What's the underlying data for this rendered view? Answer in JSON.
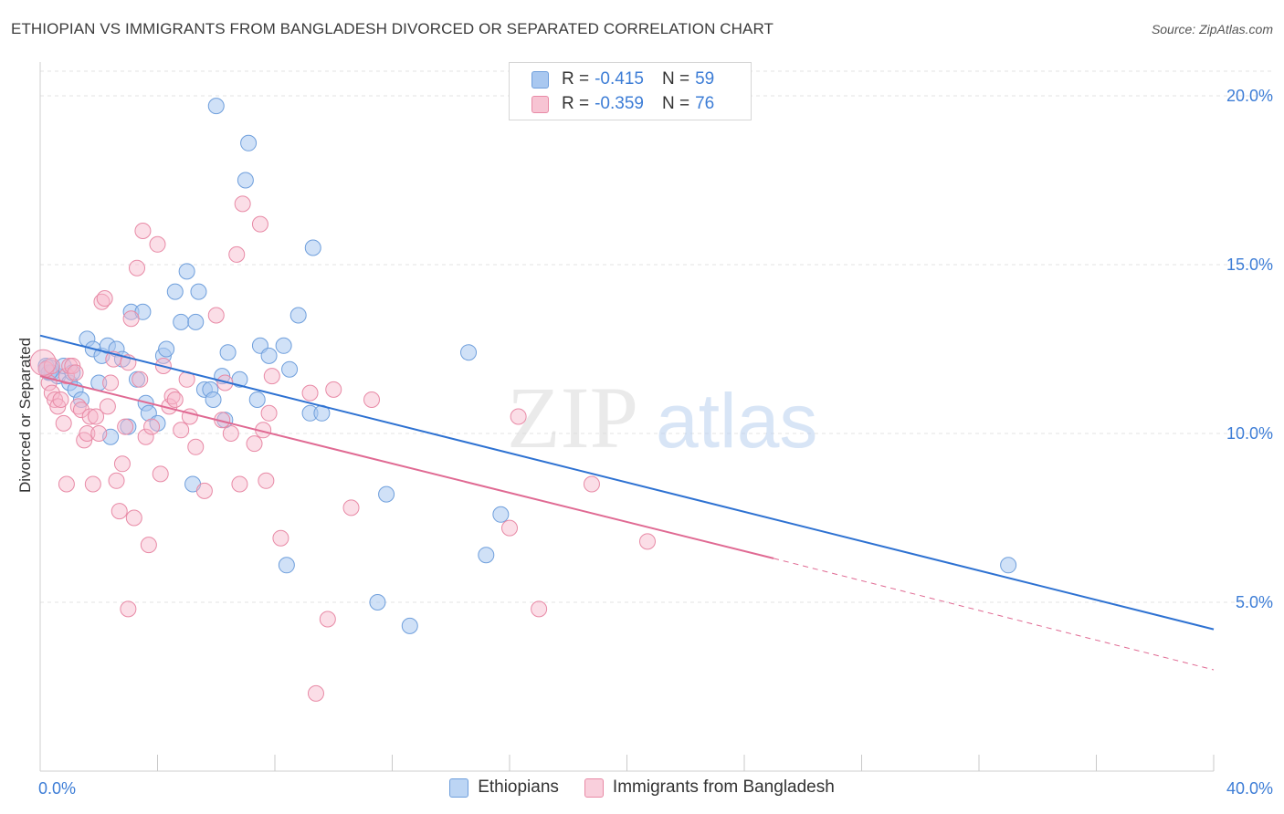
{
  "title": "ETHIOPIAN VS IMMIGRANTS FROM BANGLADESH DIVORCED OR SEPARATED CORRELATION CHART",
  "source": "Source: ZipAtlas.com",
  "watermark": {
    "zip": "ZIP",
    "atlas": "atlas"
  },
  "colors": {
    "ethiopians_fill": "#a9c8f0",
    "ethiopians_stroke": "#6f9fdc",
    "ethiopians_line": "#2e72d2",
    "bangladesh_fill": "#f7b6c9",
    "bangladesh_stroke": "#e88aa6",
    "bangladesh_line": "#e06a93",
    "tick_text": "#3d7dd6",
    "grid": "#e3e3e3"
  },
  "legend": {
    "rows": [
      {
        "r_label": "R =",
        "r_value": "-0.415",
        "n_label": "N =",
        "n_value": "59"
      },
      {
        "r_label": "R =",
        "r_value": "-0.359",
        "n_label": "N =",
        "n_value": "76"
      }
    ]
  },
  "chart_data": {
    "type": "scatter",
    "title": "ETHIOPIAN VS IMMIGRANTS FROM BANGLADESH DIVORCED OR SEPARATED CORRELATION CHART",
    "xlabel": "",
    "ylabel": "Divorced or Separated",
    "xlim": [
      0,
      40
    ],
    "ylim": [
      0,
      21
    ],
    "x_tick_labels": [
      {
        "value": 0,
        "label": "0.0%"
      },
      {
        "value": 40,
        "label": "40.0%"
      }
    ],
    "y_tick_labels": [
      {
        "value": 5,
        "label": "5.0%"
      },
      {
        "value": 10,
        "label": "10.0%"
      },
      {
        "value": 15,
        "label": "15.0%"
      },
      {
        "value": 20,
        "label": "20.0%"
      }
    ],
    "grid": true,
    "legend_position": "top-center",
    "series": [
      {
        "name": "Ethiopians",
        "trend": {
          "x0": 0,
          "y0": 12.9,
          "x1": 40,
          "y1": 4.2
        },
        "points": [
          [
            0.2,
            12.0
          ],
          [
            0.4,
            11.8
          ],
          [
            0.6,
            11.7
          ],
          [
            0.8,
            12.0
          ],
          [
            1.0,
            11.5
          ],
          [
            1.2,
            11.3
          ],
          [
            1.4,
            11.0
          ],
          [
            1.6,
            12.8
          ],
          [
            1.8,
            12.5
          ],
          [
            2.0,
            11.5
          ],
          [
            2.1,
            12.3
          ],
          [
            2.3,
            12.6
          ],
          [
            2.4,
            9.9
          ],
          [
            2.6,
            12.5
          ],
          [
            2.8,
            12.2
          ],
          [
            3.0,
            10.2
          ],
          [
            3.1,
            13.6
          ],
          [
            3.3,
            11.6
          ],
          [
            3.5,
            13.6
          ],
          [
            3.6,
            10.9
          ],
          [
            3.7,
            10.6
          ],
          [
            4.0,
            10.3
          ],
          [
            4.2,
            12.3
          ],
          [
            4.3,
            12.5
          ],
          [
            4.6,
            14.2
          ],
          [
            4.8,
            13.3
          ],
          [
            5.0,
            14.8
          ],
          [
            5.2,
            8.5
          ],
          [
            5.3,
            13.3
          ],
          [
            5.4,
            14.2
          ],
          [
            5.6,
            11.3
          ],
          [
            5.8,
            11.3
          ],
          [
            5.9,
            11.0
          ],
          [
            6.0,
            19.7
          ],
          [
            6.2,
            11.7
          ],
          [
            6.3,
            10.4
          ],
          [
            6.4,
            12.4
          ],
          [
            6.8,
            11.6
          ],
          [
            7.0,
            17.5
          ],
          [
            7.1,
            18.6
          ],
          [
            7.4,
            11.0
          ],
          [
            7.5,
            12.6
          ],
          [
            7.8,
            12.3
          ],
          [
            8.3,
            12.6
          ],
          [
            8.4,
            6.1
          ],
          [
            8.5,
            11.9
          ],
          [
            8.8,
            13.5
          ],
          [
            9.2,
            10.6
          ],
          [
            9.3,
            15.5
          ],
          [
            9.6,
            10.6
          ],
          [
            11.5,
            5.0
          ],
          [
            11.8,
            8.2
          ],
          [
            12.6,
            4.3
          ],
          [
            14.6,
            12.4
          ],
          [
            15.2,
            6.4
          ],
          [
            15.7,
            7.6
          ],
          [
            33.0,
            6.1
          ],
          [
            0.3,
            11.8
          ],
          [
            1.1,
            11.8
          ]
        ]
      },
      {
        "name": "Immigrants from Bangladesh",
        "trend": {
          "x0": 0,
          "y0": 11.7,
          "x1": 25,
          "y1": 6.3
        },
        "trend_dashed": {
          "x0": 25,
          "y0": 6.3,
          "x1": 40,
          "y1": 3.0
        },
        "points": [
          [
            0.3,
            11.5
          ],
          [
            0.4,
            11.2
          ],
          [
            0.5,
            11.0
          ],
          [
            0.6,
            10.8
          ],
          [
            0.7,
            11.0
          ],
          [
            0.8,
            10.3
          ],
          [
            0.9,
            11.7
          ],
          [
            1.0,
            12.0
          ],
          [
            1.1,
            12.0
          ],
          [
            1.2,
            11.8
          ],
          [
            1.3,
            10.8
          ],
          [
            1.4,
            10.7
          ],
          [
            1.5,
            9.8
          ],
          [
            1.6,
            10.0
          ],
          [
            1.7,
            10.5
          ],
          [
            1.8,
            8.5
          ],
          [
            1.9,
            10.5
          ],
          [
            2.0,
            10.0
          ],
          [
            2.1,
            13.9
          ],
          [
            2.2,
            14.0
          ],
          [
            2.3,
            10.8
          ],
          [
            2.4,
            11.5
          ],
          [
            2.5,
            12.2
          ],
          [
            2.6,
            8.6
          ],
          [
            2.7,
            7.7
          ],
          [
            2.8,
            9.1
          ],
          [
            2.9,
            10.2
          ],
          [
            3.0,
            12.1
          ],
          [
            3.1,
            13.4
          ],
          [
            3.2,
            7.5
          ],
          [
            3.3,
            14.9
          ],
          [
            3.4,
            11.6
          ],
          [
            3.5,
            16.0
          ],
          [
            3.6,
            9.9
          ],
          [
            3.7,
            6.7
          ],
          [
            3.8,
            10.2
          ],
          [
            4.0,
            15.6
          ],
          [
            4.1,
            8.8
          ],
          [
            4.2,
            12.0
          ],
          [
            4.4,
            10.8
          ],
          [
            4.5,
            11.1
          ],
          [
            4.6,
            11.0
          ],
          [
            4.8,
            10.1
          ],
          [
            5.0,
            11.6
          ],
          [
            5.1,
            10.5
          ],
          [
            5.3,
            9.6
          ],
          [
            5.6,
            8.3
          ],
          [
            6.0,
            13.5
          ],
          [
            6.2,
            10.4
          ],
          [
            6.3,
            11.5
          ],
          [
            6.5,
            10.0
          ],
          [
            6.7,
            15.3
          ],
          [
            6.8,
            8.5
          ],
          [
            6.9,
            16.8
          ],
          [
            7.3,
            9.7
          ],
          [
            7.5,
            16.2
          ],
          [
            7.6,
            10.1
          ],
          [
            7.7,
            8.6
          ],
          [
            7.8,
            10.6
          ],
          [
            7.9,
            11.7
          ],
          [
            8.2,
            6.9
          ],
          [
            9.2,
            11.2
          ],
          [
            9.4,
            2.3
          ],
          [
            9.8,
            4.5
          ],
          [
            10.6,
            7.8
          ],
          [
            11.3,
            11.0
          ],
          [
            16.0,
            7.2
          ],
          [
            17.0,
            4.8
          ],
          [
            18.8,
            8.5
          ],
          [
            20.7,
            6.8
          ],
          [
            3.0,
            4.8
          ],
          [
            0.9,
            8.5
          ],
          [
            10.0,
            11.3
          ],
          [
            16.3,
            10.5
          ],
          [
            0.2,
            11.9
          ],
          [
            0.4,
            12.0
          ]
        ]
      }
    ]
  },
  "bottom_legend": {
    "items": [
      {
        "label": "Ethiopians"
      },
      {
        "label": "Immigrants from Bangladesh"
      }
    ]
  }
}
